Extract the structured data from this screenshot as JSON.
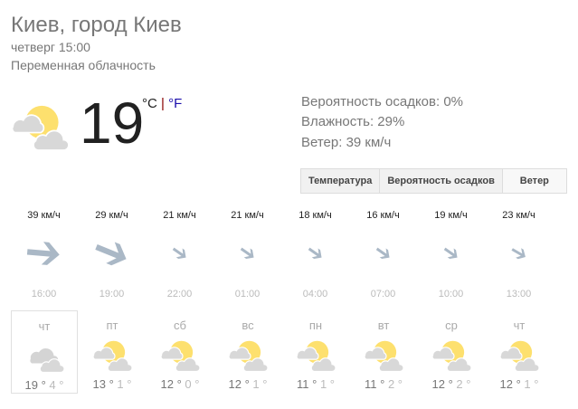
{
  "location": "Киев, город Киев",
  "datetime": "четверг 15:00",
  "condition": "Переменная облачность",
  "current": {
    "temp": "19",
    "unit_c": "°C",
    "sep": "|",
    "unit_f": "°F",
    "icon": "partly-cloudy-icon"
  },
  "details": {
    "precip": "Вероятность осадков: 0%",
    "humidity": "Влажность: 29%",
    "wind": "Ветер: 39 км/ч"
  },
  "tabs": [
    {
      "label": "Температура"
    },
    {
      "label": "Вероятность осадков"
    },
    {
      "label": "Ветер",
      "selected": true
    }
  ],
  "wind": [
    {
      "speed": "39 км/ч",
      "time": "16:00",
      "deg": 5
    },
    {
      "speed": "29 км/ч",
      "time": "19:00",
      "deg": 22
    },
    {
      "speed": "21 км/ч",
      "time": "22:00",
      "deg": 35
    },
    {
      "speed": "21 км/ч",
      "time": "01:00",
      "deg": 35
    },
    {
      "speed": "18 км/ч",
      "time": "04:00",
      "deg": 35
    },
    {
      "speed": "16 км/ч",
      "time": "07:00",
      "deg": 35
    },
    {
      "speed": "19 км/ч",
      "time": "10:00",
      "deg": 35
    },
    {
      "speed": "23 км/ч",
      "time": "13:00",
      "deg": 30
    }
  ],
  "days": [
    {
      "day": "чт",
      "hi": "19 °",
      "lo": "4 °",
      "icon": "cloudy-icon"
    },
    {
      "day": "пт",
      "hi": "13 °",
      "lo": "1 °",
      "icon": "partly-cloudy-icon"
    },
    {
      "day": "сб",
      "hi": "12 °",
      "lo": "0 °",
      "icon": "partly-cloudy-icon"
    },
    {
      "day": "вс",
      "hi": "12 °",
      "lo": "1 °",
      "icon": "partly-cloudy-icon"
    },
    {
      "day": "пн",
      "hi": "11 °",
      "lo": "1 °",
      "icon": "partly-cloudy-icon"
    },
    {
      "day": "вт",
      "hi": "11 °",
      "lo": "2 °",
      "icon": "partly-cloudy-icon"
    },
    {
      "day": "ср",
      "hi": "12 °",
      "lo": "2 °",
      "icon": "partly-cloudy-icon"
    },
    {
      "day": "чт",
      "hi": "12 °",
      "lo": "1 °",
      "icon": "partly-cloudy-icon"
    }
  ]
}
